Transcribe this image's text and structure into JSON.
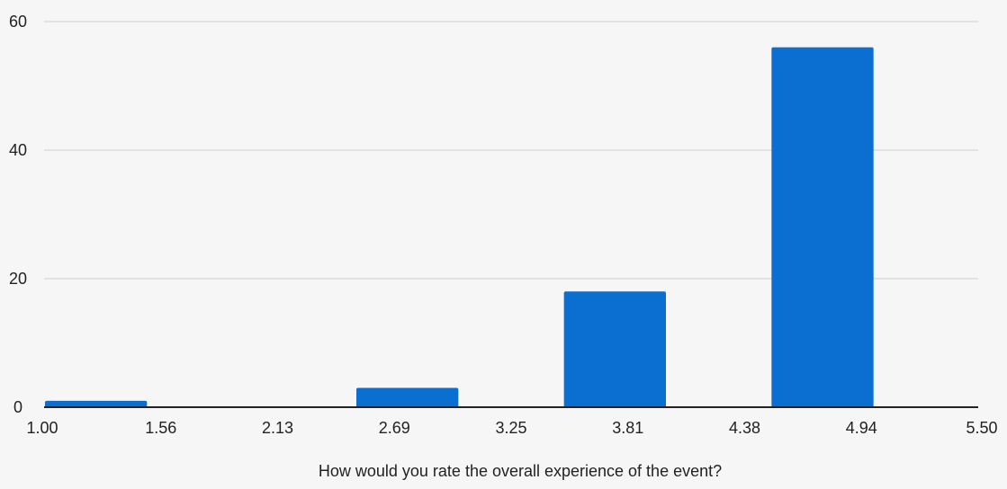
{
  "chart_data": {
    "type": "bar",
    "title": "",
    "xlabel": "How would you rate the overall experience of the event?",
    "ylabel": "",
    "xlim": [
      1.0,
      5.5
    ],
    "ylim": [
      0,
      60
    ],
    "x_ticks": [
      "1.00",
      "1.56",
      "2.13",
      "2.69",
      "3.25",
      "3.81",
      "4.38",
      "4.94",
      "5.50"
    ],
    "y_ticks": [
      0,
      20,
      40,
      60
    ],
    "grid": true,
    "legend": "none",
    "bars": [
      {
        "x_start": 1.0,
        "x_end": 1.5,
        "value": 1
      },
      {
        "x_start": 2.5,
        "x_end": 3.0,
        "value": 3
      },
      {
        "x_start": 3.5,
        "x_end": 4.0,
        "value": 18
      },
      {
        "x_start": 4.5,
        "x_end": 5.0,
        "value": 56
      }
    ],
    "bar_color": "#0a6fd0",
    "grid_color": "#dcdcdc",
    "axis_color": "#222222"
  }
}
